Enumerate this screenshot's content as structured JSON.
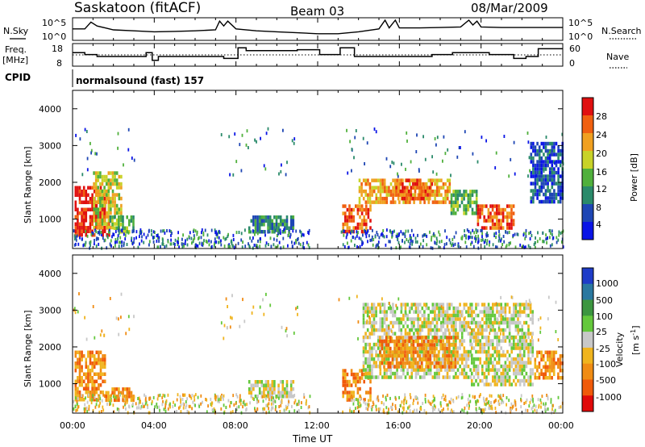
{
  "header": {
    "station": "Saskatoon (fitACF)",
    "beam": "Beam 03",
    "date": "08/Mar/2009"
  },
  "noise_panel": {
    "left_label": "N.Sky",
    "right_label": "N.Search",
    "left_ticks": [
      "10^5",
      "10^0"
    ],
    "right_ticks": [
      "10^5",
      "10^0"
    ]
  },
  "freq_panel": {
    "label_line1": "Freq.",
    "label_line2": "[MHz]",
    "left_ticks": [
      "18",
      "8"
    ],
    "right_ticks": [
      "60",
      "0"
    ],
    "right_label": "Nave"
  },
  "cpid": {
    "label": "CPID",
    "value": "normalsound (fast) 157"
  },
  "power_panel": {
    "ylabel": "Slant Range [km]",
    "yticks": [
      "4000",
      "3000",
      "2000",
      "1000"
    ],
    "colorbar_label": "Power [dB]",
    "colorbar_ticks": [
      "28",
      "24",
      "20",
      "16",
      "12",
      "8",
      "4"
    ],
    "colors": [
      "#0a14e6",
      "#1e46b4",
      "#2a8a6a",
      "#50b03c",
      "#c8d228",
      "#f0a020",
      "#f06010",
      "#e01010"
    ]
  },
  "velocity_panel": {
    "ylabel": "Slant Range [km]",
    "yticks": [
      "4000",
      "3000",
      "2000",
      "1000"
    ],
    "colorbar_label": "Velocity",
    "colorbar_unit": "[m s",
    "colorbar_unit_sup": "-1",
    "colorbar_unit_end": "]",
    "colorbar_ticks": [
      "1000",
      "500",
      "100",
      "25",
      "-25",
      "-100",
      "-500",
      "-1000"
    ],
    "colors": [
      "#1e3cc8",
      "#2a78a0",
      "#3c9640",
      "#64c83c",
      "#c8c8c8",
      "#f0b41e",
      "#f08c14",
      "#f05a0a",
      "#e00a0a"
    ]
  },
  "xaxis": {
    "ticks": [
      "00:00",
      "04:00",
      "08:00",
      "12:00",
      "16:00",
      "20:00",
      "00:00"
    ],
    "label": "Time UT"
  },
  "chart_data": [
    {
      "type": "line",
      "panel": "noise",
      "x_unit": "hours UT",
      "xlim": [
        0,
        24
      ],
      "series": [
        {
          "x": [
            0,
            0.6,
            0.9,
            1.2,
            1.6,
            2,
            3,
            4,
            5,
            6,
            7,
            7.2,
            7.4,
            7.6,
            8,
            9,
            10,
            11,
            12,
            13,
            14,
            15,
            15.3,
            15.5,
            15.8,
            16,
            17,
            18,
            19,
            19.4,
            19.6,
            19.8,
            20,
            21,
            22,
            23,
            24
          ],
          "level": [
            0.55,
            0.55,
            0.9,
            0.7,
            0.6,
            0.5,
            0.45,
            0.4,
            0.42,
            0.45,
            0.5,
            0.95,
            0.7,
            0.95,
            0.55,
            0.45,
            0.4,
            0.35,
            0.3,
            0.3,
            0.4,
            0.55,
            1.0,
            0.6,
            1.0,
            0.6,
            0.6,
            0.62,
            0.65,
            1.0,
            0.75,
            0.95,
            0.65,
            0.62,
            0.62,
            0.62,
            0.62
          ]
        }
      ]
    },
    {
      "type": "line",
      "panel": "frequency",
      "x_unit": "hours UT",
      "xlim": [
        0,
        24
      ],
      "ylim_left": [
        8,
        18
      ],
      "ylim_right": [
        0,
        60
      ],
      "series": [
        {
          "x": [
            0,
            0.6,
            1.2,
            2.6,
            3.6,
            3.9,
            4.2,
            7.4,
            7.9,
            8.1,
            8.5,
            11,
            12.1,
            13.1,
            13.8,
            16.5,
            17.6,
            18.6,
            19.8,
            20.4,
            21.4,
            21.6,
            22.2,
            22.8,
            24
          ],
          "freq_mhz": [
            15,
            14,
            13,
            13,
            15,
            11,
            13,
            12,
            12,
            17.5,
            16,
            16.5,
            14,
            17.5,
            13,
            13,
            14,
            15,
            15,
            14,
            14,
            12,
            13,
            17,
            17
          ]
        }
      ],
      "nave_level": 30
    },
    {
      "type": "heatmap",
      "panel": "power",
      "x_unit": "hours UT",
      "xlim": [
        0,
        24
      ],
      "ylim": [
        200,
        4500
      ],
      "ylabel": "Slant Range [km]",
      "colorbar": {
        "label": "Power [dB]",
        "ticks": [
          4,
          8,
          12,
          16,
          20,
          24,
          28
        ]
      },
      "regions": [
        {
          "t": [
            0.1,
            1.8
          ],
          "r": [
            600,
            1900
          ],
          "level": 7
        },
        {
          "t": [
            1.0,
            2.4
          ],
          "r": [
            800,
            2300
          ],
          "level": 4
        },
        {
          "t": [
            1.8,
            3.0
          ],
          "r": [
            700,
            1100
          ],
          "level": 3
        },
        {
          "t": [
            8.6,
            10.8
          ],
          "r": [
            700,
            1100
          ],
          "level": 2
        },
        {
          "t": [
            13.2,
            14.6
          ],
          "r": [
            700,
            1400
          ],
          "level": 6
        },
        {
          "t": [
            14.0,
            18.5
          ],
          "r": [
            1500,
            2100
          ],
          "level": 5
        },
        {
          "t": [
            15.8,
            17.6
          ],
          "r": [
            1600,
            2100
          ],
          "level": 6
        },
        {
          "t": [
            18.5,
            19.8
          ],
          "r": [
            1200,
            1800
          ],
          "level": 3
        },
        {
          "t": [
            19.8,
            21.6
          ],
          "r": [
            800,
            1400
          ],
          "level": 6
        },
        {
          "t": [
            22.4,
            24.0
          ],
          "r": [
            1500,
            3100
          ],
          "level": 1
        }
      ]
    },
    {
      "type": "heatmap",
      "panel": "velocity",
      "x_unit": "hours UT",
      "xlim": [
        0,
        24
      ],
      "ylim": [
        200,
        4500
      ],
      "ylabel": "Slant Range [km]",
      "colorbar": {
        "label": "Velocity [m s-1]",
        "ticks": [
          1000,
          500,
          100,
          25,
          -25,
          -100,
          -500,
          -1000
        ]
      },
      "regions": [
        {
          "t": [
            0.1,
            1.6
          ],
          "r": [
            600,
            1900
          ],
          "level": 6
        },
        {
          "t": [
            1.6,
            3.0
          ],
          "r": [
            600,
            900
          ],
          "level": 6
        },
        {
          "t": [
            8.6,
            10.8
          ],
          "r": [
            700,
            1100
          ],
          "level": 4
        },
        {
          "t": [
            13.2,
            14.6
          ],
          "r": [
            600,
            1400
          ],
          "level": 6
        },
        {
          "t": [
            14.2,
            19.5
          ],
          "r": [
            1200,
            3200
          ],
          "level": 4
        },
        {
          "t": [
            15.0,
            18.8
          ],
          "r": [
            1500,
            2300
          ],
          "level": 6
        },
        {
          "t": [
            19.5,
            22.5
          ],
          "r": [
            1000,
            3200
          ],
          "level": 4
        },
        {
          "t": [
            22.6,
            24.0
          ],
          "r": [
            1200,
            1900
          ],
          "level": 6
        }
      ]
    }
  ]
}
